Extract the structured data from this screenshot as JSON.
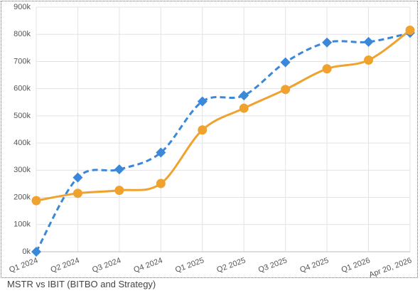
{
  "chart_data": {
    "type": "line",
    "title": "MSTR vs IBIT (BITBO and Strategy)",
    "categories": [
      "Q1 2024",
      "Q2 2024",
      "Q3 2024",
      "Q4 2024",
      "Q1 2025",
      "Q2 2025",
      "Q3 2025",
      "Q4 2025",
      "Q1 2026",
      "Apr 20, 2026"
    ],
    "series": [
      {
        "color": "#3b87d8",
        "dashed": true,
        "marker": "diamond",
        "values": [
          0,
          273000,
          303000,
          365000,
          553000,
          575000,
          697000,
          770000,
          772000,
          805000
        ]
      },
      {
        "color": "#f0a22e",
        "dashed": false,
        "marker": "circle",
        "values": [
          188000,
          215000,
          226000,
          251000,
          448000,
          528000,
          597000,
          673000,
          705000,
          815000
        ]
      }
    ],
    "ylim": [
      0,
      900000
    ],
    "yticks": [
      {
        "value": 0,
        "label": "0k"
      },
      {
        "value": 100000,
        "label": "100k"
      },
      {
        "value": 200000,
        "label": "200k"
      },
      {
        "value": 300000,
        "label": "300k"
      },
      {
        "value": 400000,
        "label": "400k"
      },
      {
        "value": 500000,
        "label": "500k"
      },
      {
        "value": 600000,
        "label": "600k"
      },
      {
        "value": 700000,
        "label": "700k"
      },
      {
        "value": 800000,
        "label": "800k"
      },
      {
        "value": 900000,
        "label": "900k"
      }
    ],
    "grid": true
  }
}
